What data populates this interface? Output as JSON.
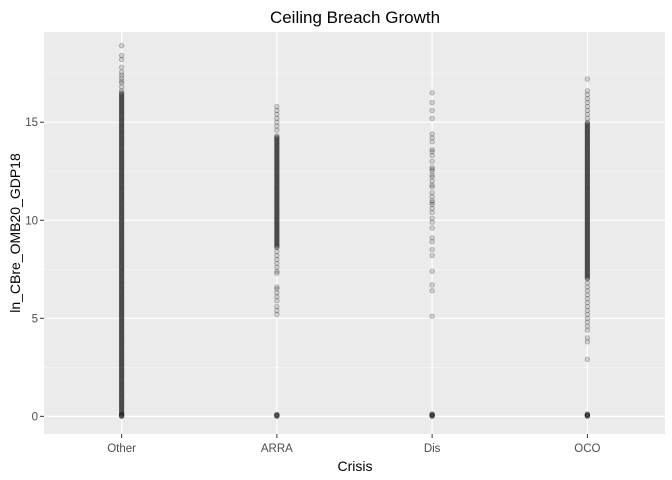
{
  "chart_data": {
    "type": "scatter",
    "title": "Ceiling Breach Growth",
    "xlabel": "Crisis",
    "ylabel": "ln_CBre_OMB20_GDP18",
    "categories": [
      "Other",
      "ARRA",
      "Dis",
      "OCO"
    ],
    "ylim": [
      -0.9,
      19.6
    ],
    "yticks": [
      0,
      5,
      10,
      15
    ],
    "grid": true,
    "point_alpha": 0.15,
    "series": [
      {
        "category": "Other",
        "dense_range": [
          0,
          16.5
        ],
        "values": [
          0,
          0.05,
          0.1,
          16.6,
          16.8,
          17.0,
          17.1,
          17.25,
          17.4,
          17.55,
          17.8,
          18.2,
          18.4,
          18.9
        ]
      },
      {
        "category": "ARRA",
        "dense_range": [
          8.6,
          14.3
        ],
        "values": [
          0,
          0.02,
          0.04,
          0.06,
          0.08,
          0.1,
          5.2,
          5.4,
          5.6,
          5.9,
          6.1,
          6.3,
          6.5,
          6.6,
          7.3,
          7.4,
          7.6,
          7.8,
          8.0,
          8.2,
          8.4,
          14.6,
          14.8,
          15.0,
          15.2,
          15.4,
          15.6,
          15.8
        ]
      },
      {
        "category": "Dis",
        "values": [
          0,
          0.02,
          0.04,
          0.06,
          0.08,
          0.1,
          0.12,
          5.1,
          6.4,
          6.7,
          7.4,
          8.2,
          8.5,
          8.9,
          9.1,
          9.6,
          9.9,
          10.1,
          10.4,
          10.6,
          10.8,
          10.9,
          11.0,
          11.2,
          11.4,
          11.7,
          11.8,
          12.0,
          12.2,
          12.3,
          12.5,
          12.6,
          12.7,
          13.0,
          13.3,
          13.5,
          13.6,
          14.0,
          14.2,
          14.4,
          15.2,
          15.6,
          16.0,
          16.5
        ]
      },
      {
        "category": "OCO",
        "dense_range": [
          7.0,
          15.0
        ],
        "values": [
          0,
          0.02,
          0.04,
          0.06,
          0.08,
          0.1,
          0.12,
          2.9,
          3.8,
          4.0,
          4.4,
          4.6,
          4.8,
          5.0,
          5.2,
          5.4,
          5.6,
          5.8,
          6.0,
          6.2,
          6.4,
          6.6,
          6.8,
          15.2,
          15.4,
          15.6,
          15.8,
          16.0,
          16.2,
          16.4,
          16.6,
          17.2
        ]
      }
    ]
  }
}
